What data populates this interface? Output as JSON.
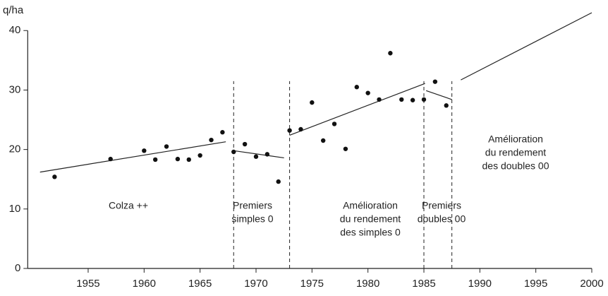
{
  "chart_data": {
    "type": "scatter",
    "y_label": "q/ha",
    "x": [
      1952,
      1957,
      1960,
      1961,
      1962,
      1963,
      1964,
      1965,
      1966,
      1967,
      1968,
      1969,
      1970,
      1971,
      1972,
      1973,
      1974,
      1975,
      1976,
      1977,
      1978,
      1979,
      1980,
      1981,
      1982,
      1983,
      1984,
      1985,
      1986,
      1987
    ],
    "values": [
      15.4,
      18.4,
      19.8,
      18.3,
      20.5,
      18.4,
      18.3,
      19.0,
      21.6,
      22.9,
      19.6,
      20.9,
      18.8,
      19.2,
      14.6,
      23.2,
      23.4,
      27.9,
      21.5,
      24.3,
      20.1,
      30.5,
      29.5,
      28.4,
      36.2,
      28.4,
      28.3,
      28.4,
      31.4,
      27.4
    ],
    "color": "#111111",
    "trend_lines": [
      {
        "x": [
          1950.7,
          1967.3
        ],
        "values": [
          16.2,
          21.3
        ]
      },
      {
        "x": [
          1968,
          1972.5
        ],
        "values": [
          19.8,
          18.6
        ]
      },
      {
        "x": [
          1973,
          1985.1
        ],
        "values": [
          22.4,
          31.1
        ]
      },
      {
        "x": [
          1985.2,
          1987.5
        ],
        "values": [
          29.9,
          28.4
        ]
      },
      {
        "x": [
          1988.3,
          2000
        ],
        "values": [
          31.7,
          43
        ]
      }
    ],
    "vlines": [
      1968,
      1973,
      1985,
      1987.5
    ],
    "vline_top": 31.5,
    "annotations": [
      [
        "Colza ++"
      ],
      [
        "Premiers",
        "simples 0"
      ],
      [
        "Amélioration",
        "du rendement",
        "des simples 0"
      ],
      [
        "Premiers",
        "doubles 00"
      ],
      [
        "Amélioration",
        "du rendement",
        "des doubles 00"
      ]
    ],
    "xlim": [
      1949.6,
      2000
    ],
    "ylim": [
      0,
      43
    ],
    "xticks": [
      1955,
      1960,
      1965,
      1970,
      1975,
      1980,
      1985,
      1990,
      1995,
      2000
    ],
    "yticks": [
      0,
      10,
      20,
      30,
      40
    ]
  }
}
